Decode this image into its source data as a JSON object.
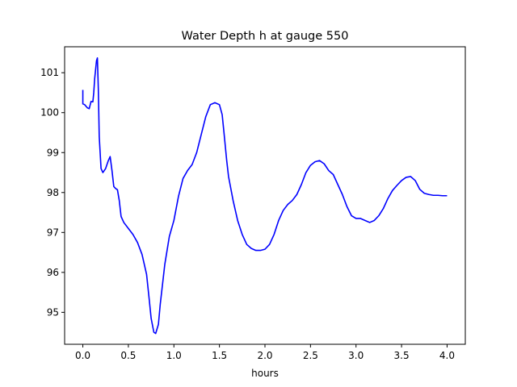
{
  "chart_data": {
    "type": "line",
    "title": "Water Depth h at gauge 550",
    "xlabel": "hours",
    "ylabel": "",
    "xlim": [
      -0.2,
      4.2
    ],
    "ylim": [
      94.2,
      101.65
    ],
    "grid": false,
    "xticks": [
      0.0,
      0.5,
      1.0,
      1.5,
      2.0,
      2.5,
      3.0,
      3.5,
      4.0
    ],
    "xtick_labels": [
      "0.0",
      "0.5",
      "1.0",
      "1.5",
      "2.0",
      "2.5",
      "3.0",
      "3.5",
      "4.0"
    ],
    "yticks": [
      95,
      96,
      97,
      98,
      99,
      100,
      101
    ],
    "ytick_labels": [
      "95",
      "96",
      "97",
      "98",
      "99",
      "100",
      "101"
    ],
    "series": [
      {
        "color": "#0000ff",
        "x": [
          0.0,
          0.0,
          0.02,
          0.05,
          0.07,
          0.09,
          0.11,
          0.12,
          0.13,
          0.15,
          0.16,
          0.17,
          0.18,
          0.2,
          0.22,
          0.25,
          0.28,
          0.3,
          0.32,
          0.34,
          0.36,
          0.38,
          0.4,
          0.42,
          0.45,
          0.5,
          0.55,
          0.6,
          0.65,
          0.7,
          0.73,
          0.75,
          0.78,
          0.8,
          0.83,
          0.85,
          0.88,
          0.9,
          0.95,
          1.0,
          1.05,
          1.1,
          1.15,
          1.2,
          1.25,
          1.3,
          1.35,
          1.4,
          1.45,
          1.5,
          1.53,
          1.55,
          1.58,
          1.6,
          1.65,
          1.7,
          1.75,
          1.8,
          1.85,
          1.9,
          1.95,
          2.0,
          2.05,
          2.1,
          2.15,
          2.2,
          2.25,
          2.3,
          2.35,
          2.4,
          2.45,
          2.5,
          2.55,
          2.6,
          2.65,
          2.7,
          2.75,
          2.8,
          2.85,
          2.9,
          2.95,
          3.0,
          3.05,
          3.1,
          3.15,
          3.2,
          3.25,
          3.3,
          3.35,
          3.4,
          3.45,
          3.5,
          3.55,
          3.6,
          3.65,
          3.7,
          3.75,
          3.8,
          3.85,
          3.9,
          3.95,
          4.0
        ],
        "y": [
          100.57,
          100.22,
          100.2,
          100.12,
          100.1,
          100.28,
          100.27,
          100.5,
          100.85,
          101.3,
          101.37,
          100.6,
          99.4,
          98.6,
          98.5,
          98.6,
          98.8,
          98.9,
          98.55,
          98.15,
          98.1,
          98.07,
          97.8,
          97.4,
          97.25,
          97.1,
          96.95,
          96.75,
          96.45,
          95.95,
          95.3,
          94.85,
          94.5,
          94.47,
          94.7,
          95.2,
          95.8,
          96.2,
          96.9,
          97.3,
          97.9,
          98.35,
          98.55,
          98.7,
          99.0,
          99.45,
          99.9,
          100.2,
          100.25,
          100.2,
          99.95,
          99.5,
          98.8,
          98.4,
          97.8,
          97.3,
          96.95,
          96.7,
          96.6,
          96.55,
          96.55,
          96.58,
          96.7,
          96.95,
          97.3,
          97.55,
          97.7,
          97.8,
          97.95,
          98.2,
          98.5,
          98.68,
          98.77,
          98.8,
          98.72,
          98.55,
          98.45,
          98.2,
          97.95,
          97.65,
          97.42,
          97.35,
          97.35,
          97.3,
          97.25,
          97.3,
          97.42,
          97.6,
          97.85,
          98.05,
          98.18,
          98.3,
          98.38,
          98.4,
          98.3,
          98.08,
          97.98,
          97.95,
          97.93,
          97.93,
          97.92,
          97.92
        ]
      }
    ]
  }
}
